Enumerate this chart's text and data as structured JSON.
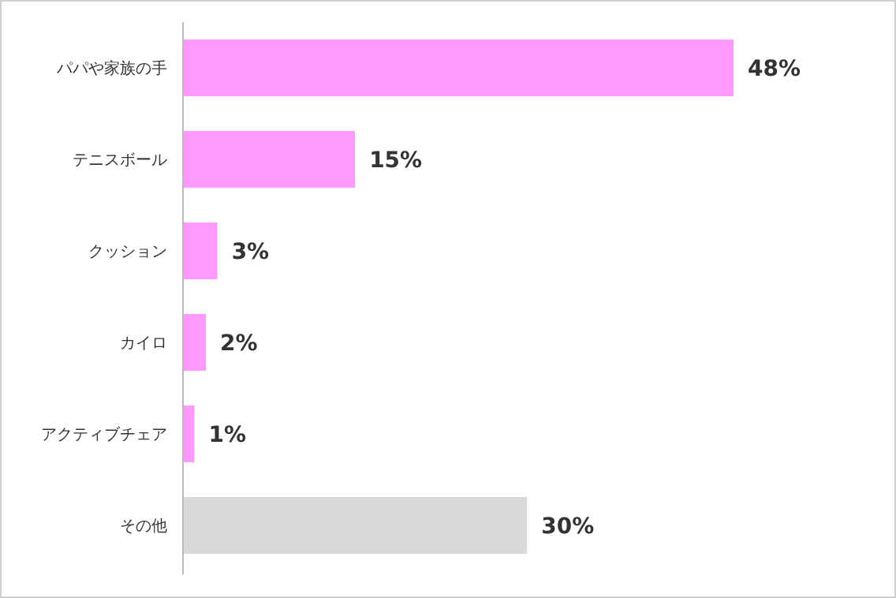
{
  "chart_data": {
    "type": "bar",
    "orientation": "horizontal",
    "categories": [
      "パパや家族の手",
      "テニスボール",
      "クッション",
      "カイロ",
      "アクティブチェア",
      "その他"
    ],
    "values": [
      48,
      15,
      3,
      2,
      1,
      30
    ],
    "colors": [
      "#ff99ff",
      "#ff99ff",
      "#ff99ff",
      "#ff99ff",
      "#ff99ff",
      "#d9d9d9"
    ],
    "value_labels": [
      "48%",
      "15%",
      "3%",
      "2%",
      "1%",
      "30%"
    ],
    "tick_labels": "y"
  }
}
